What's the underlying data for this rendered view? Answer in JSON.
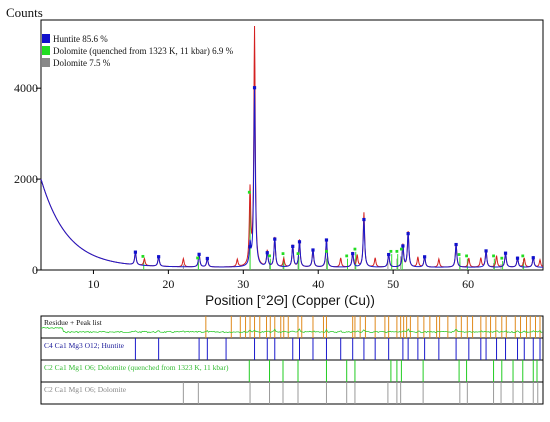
{
  "chart_data": {
    "type": "line",
    "title": "",
    "ylabel": "Counts",
    "xlabel": "Position [°2Θ] (Copper (Cu))",
    "xlim": [
      3,
      70
    ],
    "ylim": [
      0,
      5500
    ],
    "x_ticks": [
      10,
      20,
      30,
      40,
      50,
      60
    ],
    "y_ticks": [
      0,
      2000,
      4000
    ],
    "x_tick_labels": [
      "10",
      "20",
      "30",
      "40",
      "50",
      "60"
    ],
    "y_tick_labels": [
      "0",
      "2000",
      "4000"
    ],
    "legend_position": "top-left",
    "grid": false,
    "series": [
      {
        "name": "Huntite 85.6 %",
        "color": "#1010cc"
      },
      {
        "name": "Dolomite (quenched from 1323 K, 11 kbar) 6.9 %",
        "color": "#22dd22"
      },
      {
        "name": "Dolomite 7.5 %",
        "color": "#888888"
      }
    ],
    "background": {
      "start": 2000,
      "decay_scale": 3.5,
      "floor": 60
    },
    "observed_peaks": [
      {
        "x": 15.6,
        "y": 300
      },
      {
        "x": 16.8,
        "y": 150
      },
      {
        "x": 18.7,
        "y": 230
      },
      {
        "x": 22.0,
        "y": 180
      },
      {
        "x": 24.1,
        "y": 300
      },
      {
        "x": 25.2,
        "y": 200
      },
      {
        "x": 29.2,
        "y": 160
      },
      {
        "x": 30.9,
        "y": 1650
      },
      {
        "x": 31.5,
        "y": 5250
      },
      {
        "x": 33.2,
        "y": 350
      },
      {
        "x": 34.2,
        "y": 650
      },
      {
        "x": 35.4,
        "y": 180
      },
      {
        "x": 36.6,
        "y": 480
      },
      {
        "x": 37.5,
        "y": 600
      },
      {
        "x": 39.3,
        "y": 400
      },
      {
        "x": 41.1,
        "y": 620
      },
      {
        "x": 43.0,
        "y": 200
      },
      {
        "x": 44.6,
        "y": 320
      },
      {
        "x": 45.2,
        "y": 250
      },
      {
        "x": 46.1,
        "y": 1200
      },
      {
        "x": 47.6,
        "y": 200
      },
      {
        "x": 49.4,
        "y": 300
      },
      {
        "x": 51.3,
        "y": 500
      },
      {
        "x": 52.0,
        "y": 780
      },
      {
        "x": 53.3,
        "y": 220
      },
      {
        "x": 54.2,
        "y": 250
      },
      {
        "x": 56.1,
        "y": 180
      },
      {
        "x": 58.4,
        "y": 520
      },
      {
        "x": 60.1,
        "y": 200
      },
      {
        "x": 61.7,
        "y": 200
      },
      {
        "x": 62.4,
        "y": 380
      },
      {
        "x": 63.8,
        "y": 250
      },
      {
        "x": 65.0,
        "y": 330
      },
      {
        "x": 66.6,
        "y": 220
      },
      {
        "x": 67.5,
        "y": 200
      },
      {
        "x": 68.7,
        "y": 230
      },
      {
        "x": 69.6,
        "y": 160
      }
    ],
    "calculated_peaks": [
      {
        "x": 15.6,
        "y": 280
      },
      {
        "x": 18.7,
        "y": 210
      },
      {
        "x": 24.1,
        "y": 280
      },
      {
        "x": 25.2,
        "y": 190
      },
      {
        "x": 30.9,
        "y": 450
      },
      {
        "x": 31.5,
        "y": 3950
      },
      {
        "x": 33.2,
        "y": 320
      },
      {
        "x": 34.2,
        "y": 620
      },
      {
        "x": 36.6,
        "y": 460
      },
      {
        "x": 37.5,
        "y": 560
      },
      {
        "x": 39.3,
        "y": 380
      },
      {
        "x": 41.1,
        "y": 600
      },
      {
        "x": 44.6,
        "y": 300
      },
      {
        "x": 46.1,
        "y": 1050
      },
      {
        "x": 49.4,
        "y": 280
      },
      {
        "x": 51.3,
        "y": 470
      },
      {
        "x": 52.0,
        "y": 740
      },
      {
        "x": 54.2,
        "y": 230
      },
      {
        "x": 58.4,
        "y": 500
      },
      {
        "x": 62.4,
        "y": 360
      },
      {
        "x": 65.0,
        "y": 310
      },
      {
        "x": 66.6,
        "y": 200
      },
      {
        "x": 68.7,
        "y": 210
      }
    ],
    "dolomite_quenched_peaks": [
      {
        "x": 16.6,
        "y": 200
      },
      {
        "x": 23.9,
        "y": 200
      },
      {
        "x": 30.8,
        "y": 1650
      },
      {
        "x": 33.5,
        "y": 250
      },
      {
        "x": 35.3,
        "y": 300
      },
      {
        "x": 37.3,
        "y": 300
      },
      {
        "x": 41.1,
        "y": 350
      },
      {
        "x": 43.8,
        "y": 250
      },
      {
        "x": 44.9,
        "y": 400
      },
      {
        "x": 49.7,
        "y": 350
      },
      {
        "x": 50.5,
        "y": 350
      },
      {
        "x": 51.1,
        "y": 400
      },
      {
        "x": 58.8,
        "y": 280
      },
      {
        "x": 59.8,
        "y": 250
      },
      {
        "x": 63.4,
        "y": 250
      },
      {
        "x": 64.5,
        "y": 200
      },
      {
        "x": 67.3,
        "y": 250
      }
    ],
    "dolomite_peaks": [
      {
        "x": 22.0,
        "y": 120
      },
      {
        "x": 24.0,
        "y": 150
      },
      {
        "x": 30.9,
        "y": 1200
      },
      {
        "x": 33.5,
        "y": 150
      },
      {
        "x": 35.3,
        "y": 200
      },
      {
        "x": 37.3,
        "y": 200
      },
      {
        "x": 41.1,
        "y": 250
      },
      {
        "x": 44.9,
        "y": 250
      },
      {
        "x": 49.3,
        "y": 200
      },
      {
        "x": 50.5,
        "y": 250
      },
      {
        "x": 51.0,
        "y": 300
      },
      {
        "x": 58.9,
        "y": 180
      },
      {
        "x": 63.4,
        "y": 150
      },
      {
        "x": 64.4,
        "y": 130
      },
      {
        "x": 67.3,
        "y": 170
      }
    ],
    "strips": [
      {
        "label": "Residue + Peak list",
        "color": "#e08a1c",
        "positions": [
          25.0,
          28.4,
          29.6,
          30.3,
          30.9,
          31.5,
          32.2,
          33.1,
          33.6,
          34.2,
          35.0,
          35.4,
          36.0,
          37.3,
          37.8,
          39.3,
          40.7,
          41.1,
          44.6,
          44.9,
          45.6,
          46.3,
          47.6,
          48.9,
          49.4,
          50.5,
          51.0,
          51.4,
          51.8,
          52.3,
          53.3,
          54.1,
          54.9,
          55.8,
          56.2,
          57.3,
          58.4,
          59.1,
          59.9,
          60.6,
          61.7,
          62.4,
          63.0,
          63.7,
          64.5,
          65.1,
          66.3,
          67.0,
          67.8,
          68.3,
          69.0,
          69.6
        ]
      },
      {
        "label": "C4 Ca1 Mg3 O12; Huntite",
        "color": "#1a1acc",
        "positions": [
          15.6,
          18.7,
          24.1,
          25.2,
          27.7,
          31.5,
          33.2,
          34.2,
          36.6,
          37.5,
          39.3,
          41.1,
          43.0,
          44.6,
          46.1,
          47.6,
          49.4,
          51.3,
          52.0,
          53.3,
          54.2,
          56.1,
          58.4,
          60.1,
          61.7,
          62.4,
          63.8,
          65.0,
          66.6,
          67.5,
          68.7,
          69.6
        ]
      },
      {
        "label": "C2 Ca1 Mg1 O6; Dolomite (quenched from 1323 K, 11 kbar)",
        "color": "#22cc22",
        "positions": [
          30.8,
          33.5,
          35.3,
          37.3,
          41.1,
          43.8,
          44.9,
          49.7,
          50.5,
          51.1,
          54.0,
          58.8,
          59.8,
          63.4,
          64.5,
          66.0,
          67.3,
          68.7,
          69.2
        ]
      },
      {
        "label": "C2 Ca1 Mg1 O6; Dolomite",
        "color": "#9a9a9a",
        "positions": [
          22.0,
          24.0,
          30.9,
          33.5,
          35.3,
          37.3,
          41.1,
          43.8,
          44.9,
          49.3,
          50.5,
          51.0,
          54.0,
          58.9,
          59.9,
          63.4,
          64.4,
          66.0,
          67.3,
          68.7,
          69.3
        ]
      }
    ]
  }
}
